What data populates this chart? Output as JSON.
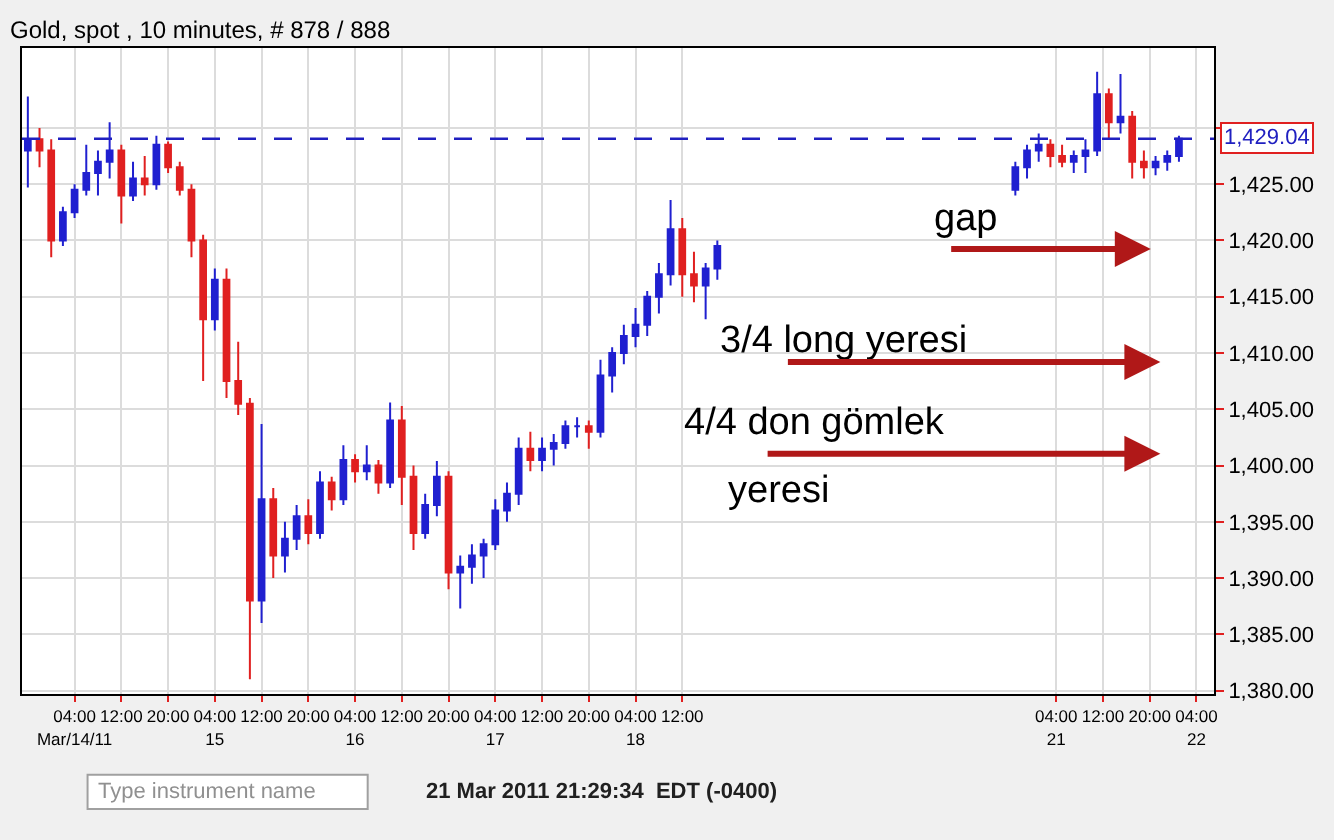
{
  "chart_data": {
    "type": "candlestick",
    "title": "Gold, spot , 10 minutes, # 878 / 888",
    "x": [
      "2011-03-13T20:00",
      "2011-03-13T22:00",
      "2011-03-14T00:00",
      "2011-03-14T02:00",
      "2011-03-14T04:00",
      "2011-03-14T06:00",
      "2011-03-14T08:00",
      "2011-03-14T10:00",
      "2011-03-14T12:00",
      "2011-03-14T14:00",
      "2011-03-14T16:00",
      "2011-03-14T18:00",
      "2011-03-14T20:00",
      "2011-03-14T22:00",
      "2011-03-15T00:00",
      "2011-03-15T02:00",
      "2011-03-15T04:00",
      "2011-03-15T06:00",
      "2011-03-15T08:00",
      "2011-03-15T10:00",
      "2011-03-15T12:00",
      "2011-03-15T14:00",
      "2011-03-15T16:00",
      "2011-03-15T18:00",
      "2011-03-15T20:00",
      "2011-03-15T22:00",
      "2011-03-16T00:00",
      "2011-03-16T02:00",
      "2011-03-16T04:00",
      "2011-03-16T06:00",
      "2011-03-16T08:00",
      "2011-03-16T10:00",
      "2011-03-16T12:00",
      "2011-03-16T14:00",
      "2011-03-16T16:00",
      "2011-03-16T18:00",
      "2011-03-16T20:00",
      "2011-03-16T22:00",
      "2011-03-17T00:00",
      "2011-03-17T02:00",
      "2011-03-17T04:00",
      "2011-03-17T06:00",
      "2011-03-17T08:00",
      "2011-03-17T10:00",
      "2011-03-17T12:00",
      "2011-03-17T14:00",
      "2011-03-17T16:00",
      "2011-03-17T18:00",
      "2011-03-17T20:00",
      "2011-03-17T22:00",
      "2011-03-18T00:00",
      "2011-03-18T02:00",
      "2011-03-18T04:00",
      "2011-03-18T06:00",
      "2011-03-18T08:00",
      "2011-03-18T10:00",
      "2011-03-18T12:00",
      "2011-03-18T14:00",
      "2011-03-18T16:00",
      "2011-03-18T18:00",
      "2011-03-20T21:00",
      "2011-03-20T23:00",
      "2011-03-21T01:00",
      "2011-03-21T03:00",
      "2011-03-21T05:00",
      "2011-03-21T07:00",
      "2011-03-21T09:00",
      "2011-03-21T11:00",
      "2011-03-21T13:00",
      "2011-03-21T15:00",
      "2011-03-21T17:00",
      "2011-03-21T19:00",
      "2011-03-21T21:00",
      "2011-03-21T23:00",
      "2011-03-22T01:00"
    ],
    "ohlc": [
      [
        1428,
        1432.8,
        1424.7,
        1429
      ],
      [
        1429,
        1430,
        1426.5,
        1428
      ],
      [
        1428,
        1429,
        1418.5,
        1420
      ],
      [
        1420,
        1423,
        1419.5,
        1422.5
      ],
      [
        1422.5,
        1425,
        1422,
        1424.5
      ],
      [
        1424.5,
        1428.5,
        1424,
        1426
      ],
      [
        1426,
        1428,
        1424,
        1427
      ],
      [
        1427,
        1430.5,
        1425.5,
        1428
      ],
      [
        1428,
        1428.5,
        1421.5,
        1424
      ],
      [
        1424,
        1427,
        1423.5,
        1425.5
      ],
      [
        1425.5,
        1427.5,
        1424,
        1425
      ],
      [
        1425,
        1429.3,
        1424.5,
        1428.5
      ],
      [
        1428.5,
        1428.8,
        1426,
        1426.5
      ],
      [
        1426.5,
        1427,
        1424,
        1424.5
      ],
      [
        1424.5,
        1425,
        1418.5,
        1420
      ],
      [
        1420,
        1420.5,
        1407.5,
        1413
      ],
      [
        1413,
        1417.5,
        1412,
        1416.5
      ],
      [
        1416.5,
        1417.5,
        1406,
        1407.5
      ],
      [
        1407.5,
        1411,
        1404.5,
        1405.5
      ],
      [
        1405.5,
        1406,
        1381,
        1388
      ],
      [
        1388,
        1403.7,
        1386,
        1397
      ],
      [
        1397,
        1398,
        1390,
        1392
      ],
      [
        1392,
        1395,
        1390.5,
        1393.5
      ],
      [
        1393.5,
        1396.5,
        1392.5,
        1395.5
      ],
      [
        1395.5,
        1397,
        1393,
        1394
      ],
      [
        1394,
        1399.5,
        1393.5,
        1398.5
      ],
      [
        1398.5,
        1399,
        1396,
        1397
      ],
      [
        1397,
        1401.8,
        1396.5,
        1400.5
      ],
      [
        1400.5,
        1401,
        1398.5,
        1399.5
      ],
      [
        1399.5,
        1401.8,
        1398.7,
        1400
      ],
      [
        1400,
        1400.5,
        1397.5,
        1398.5
      ],
      [
        1398.5,
        1405.6,
        1398,
        1404
      ],
      [
        1404,
        1405.3,
        1396.5,
        1399
      ],
      [
        1399,
        1400,
        1392.5,
        1394
      ],
      [
        1394,
        1397.5,
        1393.5,
        1396.5
      ],
      [
        1396.5,
        1400.4,
        1395.5,
        1399
      ],
      [
        1399,
        1399.5,
        1389,
        1390.5
      ],
      [
        1390.5,
        1392,
        1387.3,
        1391
      ],
      [
        1391,
        1393,
        1389.5,
        1392
      ],
      [
        1392,
        1393.5,
        1390,
        1393
      ],
      [
        1393,
        1397,
        1392.5,
        1396
      ],
      [
        1396,
        1398.5,
        1395,
        1397.5
      ],
      [
        1397.5,
        1402.5,
        1396.5,
        1401.5
      ],
      [
        1401.5,
        1403,
        1399.5,
        1400.5
      ],
      [
        1400.5,
        1402.5,
        1399.5,
        1401.5
      ],
      [
        1401.5,
        1402.8,
        1400,
        1402
      ],
      [
        1402,
        1404,
        1401.5,
        1403.5
      ],
      [
        1403.5,
        1404.3,
        1402.5,
        1403.5
      ],
      [
        1403.5,
        1404,
        1401.5,
        1403
      ],
      [
        1403,
        1409.4,
        1402.5,
        1408
      ],
      [
        1408,
        1410.5,
        1406.5,
        1410
      ],
      [
        1410,
        1412.5,
        1409,
        1411.5
      ],
      [
        1411.5,
        1414,
        1410.5,
        1412.5
      ],
      [
        1412.5,
        1415.5,
        1411.5,
        1415
      ],
      [
        1415,
        1418,
        1413.5,
        1417
      ],
      [
        1417,
        1423.6,
        1416,
        1421
      ],
      [
        1421,
        1422,
        1415,
        1417
      ],
      [
        1417,
        1419,
        1414.5,
        1416
      ],
      [
        1416,
        1418,
        1413,
        1417.5
      ],
      [
        1417.5,
        1420,
        1416.5,
        1419.5
      ],
      [
        1424.5,
        1427,
        1424,
        1426.5
      ],
      [
        1426.5,
        1428.5,
        1425.5,
        1428
      ],
      [
        1428,
        1429.5,
        1427,
        1428.5
      ],
      [
        1428.5,
        1429,
        1426.5,
        1427.5
      ],
      [
        1427.5,
        1428.5,
        1426.5,
        1427
      ],
      [
        1427,
        1428,
        1426,
        1427.5
      ],
      [
        1427.5,
        1429,
        1426,
        1428
      ],
      [
        1428,
        1435,
        1427.5,
        1433
      ],
      [
        1433,
        1433.5,
        1429,
        1430.5
      ],
      [
        1430.5,
        1434.8,
        1429.5,
        1431
      ],
      [
        1431,
        1431.5,
        1425.5,
        1427
      ],
      [
        1427,
        1428,
        1425.5,
        1426.5
      ],
      [
        1426.5,
        1427.5,
        1425.8,
        1427
      ],
      [
        1427,
        1428,
        1426.2,
        1427.5
      ],
      [
        1427.5,
        1429.3,
        1427,
        1429.04
      ]
    ],
    "colors": [
      "#2020d0",
      "#e02020",
      "#e02020",
      "#2020d0",
      "#2020d0",
      "#2020d0",
      "#2020d0",
      "#2020d0",
      "#e02020",
      "#2020d0",
      "#e02020",
      "#2020d0",
      "#e02020",
      "#e02020",
      "#e02020",
      "#e02020",
      "#2020d0",
      "#e02020",
      "#e02020",
      "#e02020",
      "#2020d0",
      "#e02020",
      "#2020d0",
      "#2020d0",
      "#e02020",
      "#2020d0",
      "#e02020",
      "#2020d0",
      "#e02020",
      "#2020d0",
      "#e02020",
      "#2020d0",
      "#e02020",
      "#e02020",
      "#2020d0",
      "#2020d0",
      "#e02020",
      "#2020d0",
      "#2020d0",
      "#2020d0",
      "#2020d0",
      "#2020d0",
      "#2020d0",
      "#e02020",
      "#2020d0",
      "#2020d0",
      "#2020d0",
      "#2020d0",
      "#e02020",
      "#2020d0",
      "#2020d0",
      "#2020d0",
      "#2020d0",
      "#2020d0",
      "#2020d0",
      "#2020d0",
      "#e02020",
      "#e02020",
      "#2020d0",
      "#2020d0",
      "#2020d0",
      "#2020d0",
      "#2020d0",
      "#e02020",
      "#e02020",
      "#2020d0",
      "#2020d0",
      "#2020d0",
      "#e02020",
      "#2020d0",
      "#e02020",
      "#e02020",
      "#2020d0",
      "#2020d0",
      "#2020d0"
    ],
    "xlim": [
      "2011-03-13T19:00",
      "2011-03-22T07:00"
    ],
    "ylim": [
      1379.7,
      1437.1
    ],
    "xticks": [
      {
        "value": "2011-03-14T04:00",
        "label": "04:00\nMar/14/11"
      },
      {
        "value": "2011-03-14T12:00",
        "label": "12:00"
      },
      {
        "value": "2011-03-14T20:00",
        "label": "20:00"
      },
      {
        "value": "2011-03-15T04:00",
        "label": "04:00\n15"
      },
      {
        "value": "2011-03-15T12:00",
        "label": "12:00"
      },
      {
        "value": "2011-03-15T20:00",
        "label": "20:00"
      },
      {
        "value": "2011-03-16T04:00",
        "label": "04:00\n16"
      },
      {
        "value": "2011-03-16T12:00",
        "label": "12:00"
      },
      {
        "value": "2011-03-16T20:00",
        "label": "20:00"
      },
      {
        "value": "2011-03-17T04:00",
        "label": "04:00\n17"
      },
      {
        "value": "2011-03-17T12:00",
        "label": "12:00"
      },
      {
        "value": "2011-03-17T20:00",
        "label": "20:00"
      },
      {
        "value": "2011-03-18T04:00",
        "label": "04:00\n18"
      },
      {
        "value": "2011-03-18T12:00",
        "label": "12:00"
      },
      {
        "value": "2011-03-21T04:00",
        "label": "04:00\n21"
      },
      {
        "value": "2011-03-21T12:00",
        "label": "12:00"
      },
      {
        "value": "2011-03-21T20:00",
        "label": "20:00"
      },
      {
        "value": "2011-03-22T04:00",
        "label": "04:00\n22"
      }
    ],
    "yticks": [
      {
        "value": 1380,
        "label": "1,380.00"
      },
      {
        "value": 1385,
        "label": "1,385.00"
      },
      {
        "value": 1390,
        "label": "1,390.00"
      },
      {
        "value": 1395,
        "label": "1,395.00"
      },
      {
        "value": 1400,
        "label": "1,400.00"
      },
      {
        "value": 1405,
        "label": "1,405.00"
      },
      {
        "value": 1410,
        "label": "1,410.00"
      },
      {
        "value": 1415,
        "label": "1,415.00"
      },
      {
        "value": 1420,
        "label": "1,420.00"
      },
      {
        "value": 1425,
        "label": "1,425.00"
      },
      {
        "value": 1430,
        "label": null
      }
    ],
    "grid": true,
    "ref_lines": [
      {
        "axis": "y",
        "value": 1429.04,
        "label": "1,429.04",
        "color": "#2020c0",
        "line_style": "dashed"
      }
    ],
    "annotations": [
      "gap",
      "3/4 long yeresi",
      "4/4 don gömlek",
      "yeresi",
      "Type instrument name",
      "21 Mar 2011 21:29:34  EDT (-0400)"
    ]
  }
}
